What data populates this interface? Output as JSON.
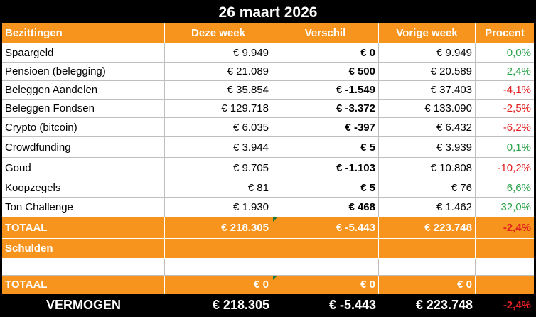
{
  "title": "26 maart 2026",
  "headers": [
    "Bezittingen",
    "Deze week",
    "Verschil",
    "Vorige week",
    "Procent"
  ],
  "rows": [
    {
      "name": "Spaargeld",
      "this_week": "€ 9.949",
      "diff": "€ 0",
      "last_week": "€ 9.949",
      "pct": "0,0%",
      "trend": "pos"
    },
    {
      "name": "Pensioen (belegging)",
      "this_week": "€ 21.089",
      "diff": "€ 500",
      "last_week": "€ 20.589",
      "pct": "2,4%",
      "trend": "pos"
    },
    {
      "name": "Beleggen Aandelen",
      "this_week": "€ 35.854",
      "diff": "€ -1.549",
      "last_week": "€ 37.403",
      "pct": "-4,1%",
      "trend": "neg"
    },
    {
      "name": "Beleggen Fondsen",
      "this_week": "€ 129.718",
      "diff": "€ -3.372",
      "last_week": "€ 133.090",
      "pct": "-2,5%",
      "trend": "neg"
    },
    {
      "name": "Crypto (bitcoin)",
      "this_week": "€ 6.035",
      "diff": "€ -397",
      "last_week": "€ 6.432",
      "pct": "-6,2%",
      "trend": "neg"
    },
    {
      "name": "Crowdfunding",
      "this_week": "€ 3.944",
      "diff": "€ 5",
      "last_week": "€ 3.939",
      "pct": "0,1%",
      "trend": "pos"
    },
    {
      "name": "Goud",
      "this_week": "€ 9.705",
      "diff": "€ -1.103",
      "last_week": "€ 10.808",
      "pct": "-10,2%",
      "trend": "neg"
    },
    {
      "name": "Koopzegels",
      "this_week": "€ 81",
      "diff": "€ 5",
      "last_week": "€ 76",
      "pct": "6,6%",
      "trend": "pos"
    },
    {
      "name": "Ton Challenge",
      "this_week": "€ 1.930",
      "diff": "€ 468",
      "last_week": "€ 1.462",
      "pct": "32,0%",
      "trend": "pos"
    }
  ],
  "totaal_assets": {
    "label": "TOTAAL",
    "this_week": "€ 218.305",
    "diff": "€ -5.443",
    "last_week": "€ 223.748",
    "pct": "-2,4%"
  },
  "schulden_label": "Schulden",
  "totaal_debts": {
    "label": "TOTAAL",
    "this_week": "€ 0",
    "diff": "€ 0",
    "last_week": "€ 0",
    "pct": ""
  },
  "vermogen": {
    "label": "VERMOGEN",
    "this_week": "€ 218.305",
    "diff": "€ -5.443",
    "last_week": "€ 223.748",
    "pct": "-2,4%"
  },
  "colors": {
    "orange": "#f7941d",
    "positive": "#2aa34a",
    "negative": "#e21f1f",
    "black": "#000000"
  }
}
